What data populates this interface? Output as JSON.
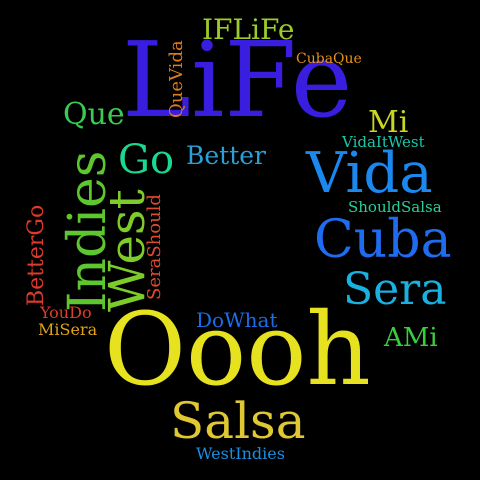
{
  "words": {
    "life": {
      "text": "LiFe",
      "color": "#3a1ee0"
    },
    "oooh": {
      "text": "Oooh",
      "color": "#e6e220"
    },
    "cuba": {
      "text": "Cuba",
      "color": "#1f6cf0"
    },
    "vida": {
      "text": "Vida",
      "color": "#1a88ee"
    },
    "indies": {
      "text": "Indies",
      "color": "#5ec62e"
    },
    "west": {
      "text": "West",
      "color": "#7ccc2a"
    },
    "salsa": {
      "text": "Salsa",
      "color": "#e0c832"
    },
    "sera": {
      "text": "Sera",
      "color": "#1ab0e0"
    },
    "go": {
      "text": "Go",
      "color": "#1ad890"
    },
    "better": {
      "text": "Better",
      "color": "#2aa0d8"
    },
    "que": {
      "text": "Que",
      "color": "#3acc50"
    },
    "iflife": {
      "text": "IFLiFe",
      "color": "#9ccc2a"
    },
    "mi": {
      "text": "Mi",
      "color": "#c8d820"
    },
    "amI": {
      "text": "AMi",
      "color": "#38d03a"
    },
    "betterGo": {
      "text": "BetterGo",
      "color": "#e03a2a"
    },
    "seraShould": {
      "text": "SeraShould",
      "color": "#e04a30"
    },
    "queVida": {
      "text": "QueVida",
      "color": "#e07a1a"
    },
    "cubaQue": {
      "text": "CubaQue",
      "color": "#e8901a"
    },
    "vidaItWest": {
      "text": "VidaItWest",
      "color": "#18c8a8"
    },
    "shouldSalsa": {
      "text": "ShouldSalsa",
      "color": "#28d09a"
    },
    "doWhat": {
      "text": "DoWhat",
      "color": "#1a6ee8"
    },
    "youDo": {
      "text": "YouDo",
      "color": "#e03c2a"
    },
    "miSera": {
      "text": "MiSera",
      "color": "#e0a21a"
    },
    "westIndies": {
      "text": "WestIndies",
      "color": "#1a8ee0"
    }
  }
}
